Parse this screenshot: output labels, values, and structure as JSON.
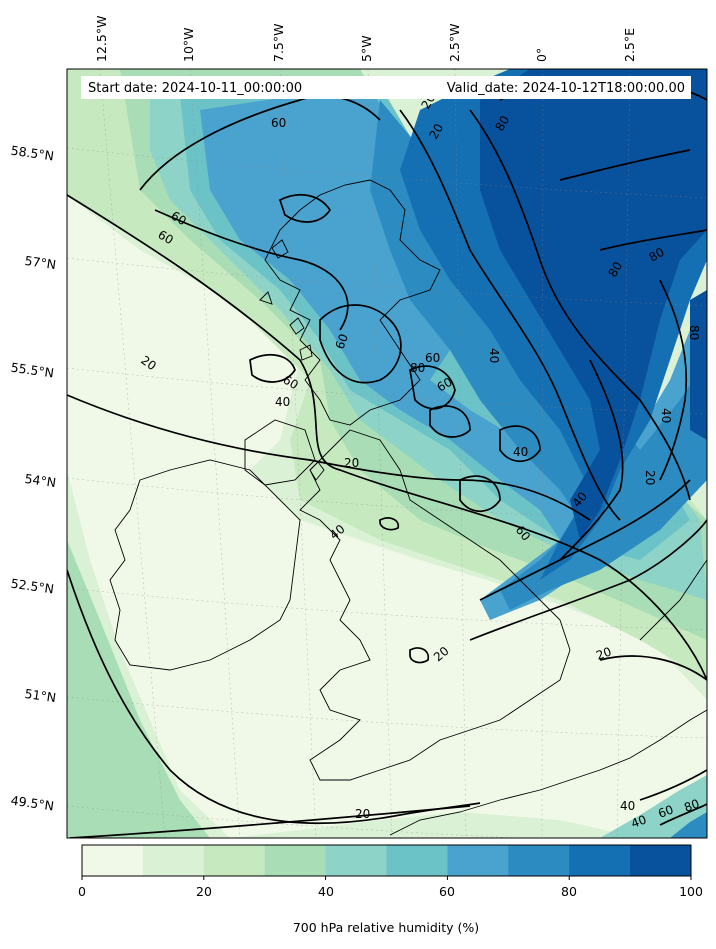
{
  "header": {
    "start_date": "Start date: 2024-10-11_00:00:00",
    "valid_date": "Valid_date: 2024-10-12T18:00:00.00"
  },
  "map": {
    "longitude_labels": [
      "12.5°W",
      "10°W",
      "7.5°W",
      "5°W",
      "2.5°W",
      "0°",
      "2.5°E"
    ],
    "latitude_labels": [
      "58.5°N",
      "57°N",
      "55.5°N",
      "54°N",
      "52.5°N",
      "51°N",
      "49.5°N"
    ],
    "contour_labels": [
      "60",
      "60",
      "60",
      "60",
      "80",
      "80",
      "80",
      "80",
      "80",
      "60",
      "60",
      "60",
      "40",
      "40",
      "40",
      "40",
      "40",
      "40",
      "20",
      "20",
      "20",
      "20",
      "20",
      "20",
      "40",
      "60",
      "80",
      "60",
      "40",
      "20",
      "20"
    ]
  },
  "colorbar": {
    "label": "700 hPa relative humidity (%)",
    "tick_labels": [
      "0",
      "20",
      "40",
      "60",
      "80",
      "100"
    ],
    "colors": [
      "#f0f9e8",
      "#dbf1d5",
      "#c7e9c0",
      "#a8ddb5",
      "#8dd3c7",
      "#6cc3c7",
      "#4aa3cf",
      "#2c8bc0",
      "#1470b3",
      "#08519c"
    ]
  }
}
